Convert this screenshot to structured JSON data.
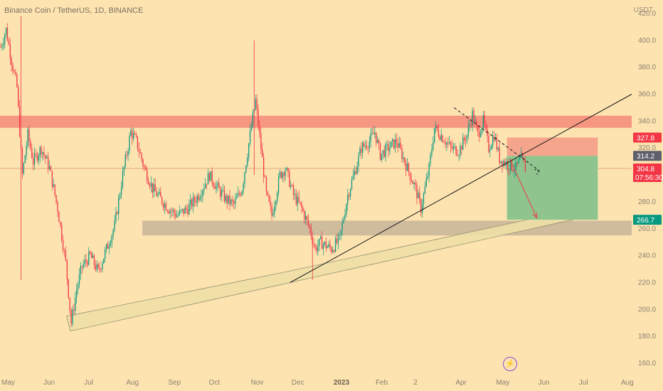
{
  "header": {
    "title": "Binance Coin / TetherUS, 1D, BINANCE",
    "unit": "USDT"
  },
  "chart_data": {
    "type": "candlestick",
    "ylim": [
      150,
      430
    ],
    "xlim": [
      0,
      466
    ],
    "y_ticks": [
      160,
      180,
      200,
      220,
      240,
      260,
      280,
      300,
      320,
      340,
      360,
      380,
      400,
      420
    ],
    "x_ticks": [
      {
        "label": "May",
        "day": 0,
        "bold": false
      },
      {
        "label": "Jun",
        "day": 31,
        "bold": false
      },
      {
        "label": "Jul",
        "day": 61,
        "bold": false
      },
      {
        "label": "Aug",
        "day": 92,
        "bold": false
      },
      {
        "label": "Sep",
        "day": 123,
        "bold": false
      },
      {
        "label": "Oct",
        "day": 153,
        "bold": false
      },
      {
        "label": "Nov",
        "day": 184,
        "bold": false
      },
      {
        "label": "Dec",
        "day": 214,
        "bold": false
      },
      {
        "label": "2023",
        "day": 245,
        "bold": true
      },
      {
        "label": "Feb",
        "day": 276,
        "bold": false
      },
      {
        "label": "2",
        "day": 304,
        "bold": false
      },
      {
        "label": "Apr",
        "day": 335,
        "bold": false
      },
      {
        "label": "May",
        "day": 365,
        "bold": false
      },
      {
        "label": "Jun",
        "day": 396,
        "bold": false
      },
      {
        "label": "Jul",
        "day": 426,
        "bold": false
      },
      {
        "label": "Aug",
        "day": 457,
        "bold": false
      }
    ],
    "price_path": [
      [
        0,
        395
      ],
      [
        4,
        408
      ],
      [
        8,
        385
      ],
      [
        12,
        365
      ],
      [
        16,
        300
      ],
      [
        20,
        330
      ],
      [
        24,
        310
      ],
      [
        30,
        320
      ],
      [
        36,
        305
      ],
      [
        42,
        275
      ],
      [
        48,
        235
      ],
      [
        52,
        190
      ],
      [
        56,
        215
      ],
      [
        60,
        232
      ],
      [
        66,
        240
      ],
      [
        72,
        228
      ],
      [
        78,
        245
      ],
      [
        84,
        262
      ],
      [
        90,
        300
      ],
      [
        96,
        332
      ],
      [
        100,
        325
      ],
      [
        106,
        305
      ],
      [
        112,
        290
      ],
      [
        118,
        282
      ],
      [
        124,
        275
      ],
      [
        130,
        270
      ],
      [
        138,
        275
      ],
      [
        146,
        285
      ],
      [
        154,
        300
      ],
      [
        160,
        290
      ],
      [
        166,
        282
      ],
      [
        172,
        278
      ],
      [
        178,
        290
      ],
      [
        184,
        330
      ],
      [
        188,
        355
      ],
      [
        192,
        320
      ],
      [
        196,
        285
      ],
      [
        200,
        270
      ],
      [
        206,
        300
      ],
      [
        210,
        305
      ],
      [
        216,
        285
      ],
      [
        222,
        275
      ],
      [
        228,
        260
      ],
      [
        232,
        245
      ],
      [
        236,
        250
      ],
      [
        244,
        245
      ],
      [
        250,
        252
      ],
      [
        256,
        285
      ],
      [
        262,
        305
      ],
      [
        266,
        320
      ],
      [
        272,
        325
      ],
      [
        276,
        332
      ],
      [
        280,
        315
      ],
      [
        286,
        320
      ],
      [
        292,
        325
      ],
      [
        296,
        315
      ],
      [
        302,
        300
      ],
      [
        306,
        290
      ],
      [
        310,
        275
      ],
      [
        316,
        305
      ],
      [
        320,
        335
      ],
      [
        326,
        328
      ],
      [
        332,
        320
      ],
      [
        338,
        318
      ],
      [
        344,
        330
      ],
      [
        348,
        345
      ],
      [
        352,
        330
      ],
      [
        356,
        340
      ],
      [
        360,
        320
      ],
      [
        364,
        330
      ],
      [
        368,
        312
      ],
      [
        374,
        308
      ],
      [
        380,
        305
      ],
      [
        384,
        312
      ],
      [
        387,
        304.8
      ]
    ],
    "wick_spikes": [
      {
        "day": 15,
        "high": 418,
        "low": 222
      },
      {
        "day": 187,
        "high": 400,
        "low": 300
      },
      {
        "day": 230,
        "high": 252,
        "low": 222
      }
    ],
    "zones": [
      {
        "name": "resistance",
        "from_day": 0,
        "to_day": 466,
        "low": 335,
        "high": 344,
        "color": "#f4897a"
      },
      {
        "name": "support",
        "from_day": 105,
        "to_day": 466,
        "low": 255,
        "high": 266,
        "color": "#c7b59a"
      }
    ],
    "channel": {
      "points": [
        [
          52,
          184
        ],
        [
          214,
          220
        ],
        [
          428,
          268
        ],
        [
          427,
          275
        ],
        [
          211,
          228
        ],
        [
          49,
          195
        ]
      ],
      "color": "#efe0a8"
    },
    "trend_lines": [
      {
        "name": "uptrend",
        "from": [
          214,
          220
        ],
        "to": [
          466,
          360
        ],
        "color": "#1a1a1a",
        "dashed": false
      },
      {
        "name": "downtrend",
        "from": [
          335,
          350
        ],
        "to": [
          398,
          303
        ],
        "color": "#1a1a1a",
        "dashed": true
      }
    ],
    "short_position": {
      "from_day": 374,
      "to_day": 441,
      "entry": 314.2,
      "stop": 327.8,
      "target": 266.7
    },
    "arrow": {
      "from": [
        376,
        312
      ],
      "to": [
        396,
        268
      ],
      "color": "#e05050"
    },
    "price_labels": [
      {
        "value": 327.8,
        "text": "327.8",
        "bg": "#f23645"
      },
      {
        "value": 314.2,
        "text": "314.2",
        "bg": "#5d606b"
      },
      {
        "value": 304.8,
        "text": "304.8",
        "sub": "07:56:30",
        "bg": "#f23645"
      },
      {
        "value": 266.7,
        "text": "266.7",
        "bg": "#089981"
      }
    ]
  },
  "bottom": {
    "bolt_icon": "⚡"
  }
}
